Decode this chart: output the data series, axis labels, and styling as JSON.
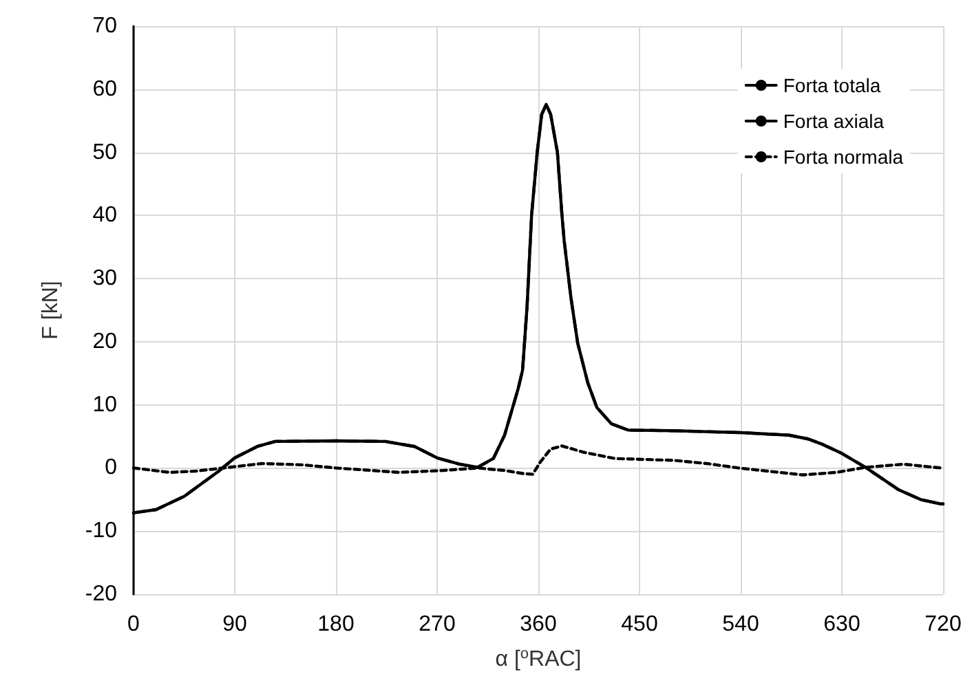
{
  "chart_data": {
    "type": "line",
    "xlabel": "α [$^{o}$RAC]",
    "ylabel": "F [kN]",
    "xlim": [
      0,
      720
    ],
    "xticks": [
      0,
      90,
      180,
      270,
      360,
      450,
      540,
      630,
      720
    ],
    "ylim": [
      -20,
      70
    ],
    "yticks": [
      -20,
      -10,
      0,
      10,
      20,
      30,
      40,
      50,
      60,
      70
    ],
    "grid": true,
    "legend": "top right",
    "marker": "none",
    "series": [
      {
        "name": "Forta totala",
        "color": "#000000",
        "line_style": "solid",
        "x": [
          0,
          20,
          45,
          75,
          90,
          110,
          126,
          180,
          224,
          250,
          270,
          290,
          306,
          320,
          330,
          342,
          346,
          350,
          354,
          359,
          363,
          367,
          371,
          377,
          381,
          383,
          389,
          395,
          404,
          412,
          425,
          440,
          480,
          540,
          583,
          600,
          612,
          630,
          651,
          680,
          700,
          718,
          720
        ],
        "values": [
          -7.1,
          -6.6,
          -4.5,
          -0.6,
          1.6,
          3.4,
          4.2,
          4.3,
          4.2,
          3.4,
          1.6,
          0.6,
          0.1,
          1.5,
          5.2,
          12.5,
          15.5,
          25.6,
          40,
          50,
          56,
          57.6,
          56,
          50,
          40.1,
          36,
          27,
          19.8,
          13.5,
          9.6,
          7.0,
          6.0,
          5.9,
          5.6,
          5.2,
          4.6,
          3.8,
          2.3,
          0.1,
          -3.4,
          -5.0,
          -5.7,
          -5.7
        ]
      },
      {
        "name": "Forta axiala",
        "color": "#000000",
        "line_style": "dashed",
        "x": [
          0,
          20,
          45,
          75,
          90,
          110,
          126,
          180,
          224,
          250,
          270,
          290,
          306,
          320,
          330,
          342,
          346,
          350,
          354,
          359,
          363,
          367,
          371,
          377,
          381,
          383,
          389,
          395,
          404,
          412,
          425,
          440,
          480,
          540,
          583,
          600,
          612,
          630,
          651,
          680,
          700,
          718,
          720
        ],
        "values": [
          -7.1,
          -6.6,
          -4.5,
          -0.6,
          1.6,
          3.4,
          4.2,
          4.3,
          4.2,
          3.4,
          1.6,
          0.6,
          0.1,
          1.5,
          5.2,
          12.5,
          15.5,
          25.6,
          40,
          50,
          56,
          57.6,
          56,
          50,
          40.1,
          36,
          27,
          19.8,
          13.5,
          9.6,
          7.0,
          6.0,
          5.9,
          5.6,
          5.2,
          4.6,
          3.8,
          2.3,
          0.1,
          -3.4,
          -5.0,
          -5.7,
          -5.7
        ]
      },
      {
        "name": "Forta normala",
        "color": "#000000",
        "line_style": "dotted",
        "x": [
          0,
          32,
          55,
          80,
          114,
          150,
          180,
          236,
          275,
          306,
          330,
          347,
          355,
          362,
          371,
          381,
          400,
          428,
          481,
          510,
          538,
          595,
          625,
          651,
          685,
          718,
          720
        ],
        "values": [
          0,
          -0.7,
          -0.5,
          0,
          0.7,
          0.5,
          0,
          -0.7,
          -0.4,
          0,
          -0.4,
          -0.9,
          -1.0,
          1.0,
          3.0,
          3.5,
          2.5,
          1.5,
          1.2,
          0.7,
          0,
          -1.1,
          -0.7,
          0.1,
          0.6,
          0,
          0
        ]
      }
    ]
  }
}
